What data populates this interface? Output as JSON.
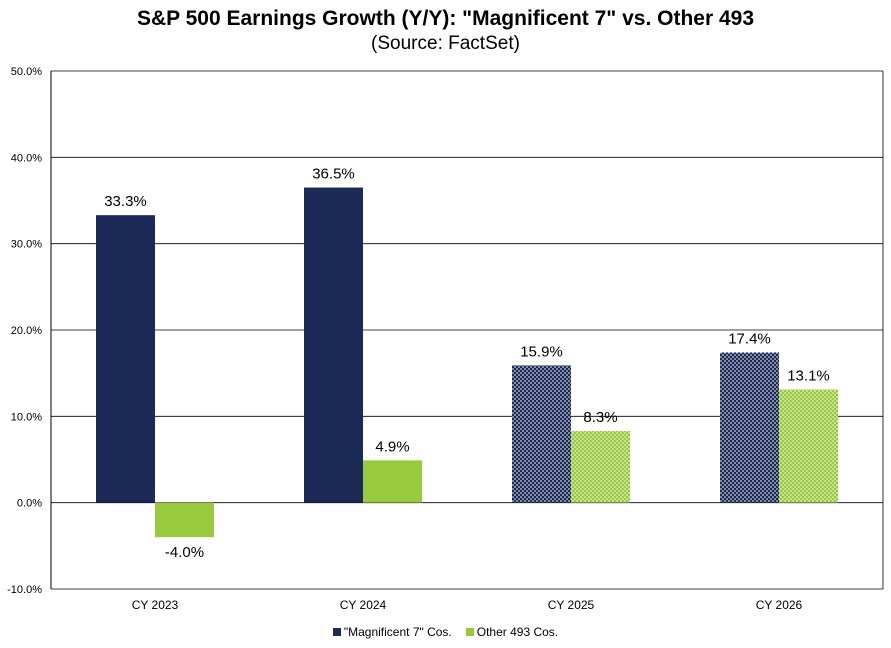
{
  "chart_data": {
    "type": "bar",
    "title": "S&P 500 Earnings Growth (Y/Y): \"Magnificent 7\" vs. Other 493",
    "subtitle": "(Source: FactSet)",
    "categories": [
      "CY 2023",
      "CY 2024",
      "CY 2025",
      "CY 2026"
    ],
    "series": [
      {
        "name": "\"Magnificent 7\" Cos.",
        "color": "#1b2a57",
        "values": [
          33.3,
          36.5,
          15.9,
          17.4
        ],
        "labels": [
          "33.3%",
          "36.5%",
          "15.9%",
          "17.4%"
        ],
        "estimate": [
          false,
          false,
          true,
          true
        ]
      },
      {
        "name": "Other 493 Cos.",
        "color": "#99c93c",
        "values": [
          -4.0,
          4.9,
          8.3,
          13.1
        ],
        "labels": [
          "-4.0%",
          "4.9%",
          "8.3%",
          "13.1%"
        ],
        "estimate": [
          false,
          false,
          true,
          true
        ]
      }
    ],
    "ylim": [
      -10,
      50
    ],
    "yticks": [
      50,
      40,
      30,
      20,
      10,
      0,
      -10
    ],
    "ytick_labels": [
      "50.0%",
      "40.0%",
      "30.0%",
      "20.0%",
      "10.0%",
      "0.0%",
      "-10.0%"
    ],
    "xlabel": "",
    "ylabel": "",
    "grid": true,
    "legend_position": "bottom"
  }
}
